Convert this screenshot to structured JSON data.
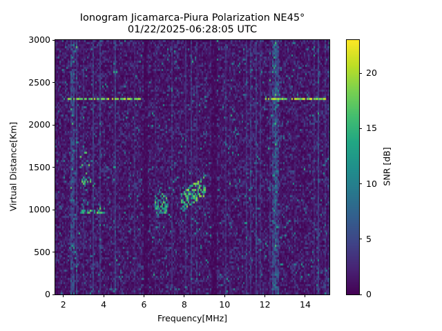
{
  "figure": {
    "title_line1": "Ionogram Jicamarca-Piura Polarization NE45°",
    "title_line2": "01/22/2025-06:28:05 UTC"
  },
  "axes": {
    "xlabel": "Frequency[MHz]",
    "ylabel": "Virtual Distance[Km]",
    "xticks": [
      "2",
      "4",
      "6",
      "8",
      "10",
      "12",
      "14"
    ],
    "yticks": [
      "0",
      "500",
      "1000",
      "1500",
      "2000",
      "2500",
      "3000"
    ]
  },
  "colorbar": {
    "label": "SNR [dB]",
    "ticks": [
      "0",
      "5",
      "10",
      "15",
      "20"
    ],
    "colormap": "viridis",
    "min_color": "#440154",
    "max_color": "#fde725"
  },
  "chart_data": {
    "type": "heatmap",
    "title": "Ionogram Jicamarca-Piura Polarization NE45° 01/22/2025-06:28:05 UTC",
    "xlabel": "Frequency[MHz]",
    "ylabel": "Virtual Distance[Km]",
    "colorbar_label": "SNR [dB]",
    "xlim": [
      1.6,
      15.2
    ],
    "ylim": [
      0,
      3000
    ],
    "zlim": [
      0,
      23
    ],
    "xticks": [
      2,
      4,
      6,
      8,
      10,
      12,
      14
    ],
    "yticks": [
      0,
      500,
      1000,
      1500,
      2000,
      2500,
      3000
    ],
    "colorbar_ticks": [
      0,
      5,
      10,
      15,
      20
    ],
    "background_snr": 1,
    "features": [
      {
        "name": "first-hop trace",
        "freq_mhz": [
          2.8,
          4.0,
          5.0,
          6.0
        ],
        "distance_km": [
          980,
          1000,
          1030,
          1050
        ],
        "snr_db": 20
      },
      {
        "name": "second-hop trace",
        "freq_mhz": [
          2.8,
          3.5,
          4.5,
          5.5
        ],
        "distance_km": [
          1330,
          1380,
          1480,
          1650
        ],
        "snr_db": 18
      },
      {
        "name": "trace cluster ~7 MHz",
        "freq_mhz": [
          6.5,
          7.2
        ],
        "distance_km": [
          1050,
          1100
        ],
        "snr_db": 18
      },
      {
        "name": "trace cluster ~8.5 MHz",
        "freq_mhz": [
          7.8,
          9.0
        ],
        "distance_km": [
          1100,
          1300
        ],
        "snr_db": 20
      },
      {
        "name": "interference line 2320 km (low band)",
        "freq_mhz": [
          2.2,
          6.0
        ],
        "distance_km": [
          2320,
          2320
        ],
        "snr_db": 22
      },
      {
        "name": "interference line 2320 km (high band)",
        "freq_mhz": [
          12.0,
          15.0
        ],
        "distance_km": [
          2320,
          2320
        ],
        "snr_db": 22
      },
      {
        "name": "vertical interference band",
        "freq_mhz": [
          2.4,
          2.5
        ],
        "distance_km": [
          0,
          3000
        ],
        "snr_db": 8
      },
      {
        "name": "vertical interference band",
        "freq_mhz": [
          12.4,
          12.6
        ],
        "distance_km": [
          0,
          3000
        ],
        "snr_db": 8
      }
    ]
  }
}
